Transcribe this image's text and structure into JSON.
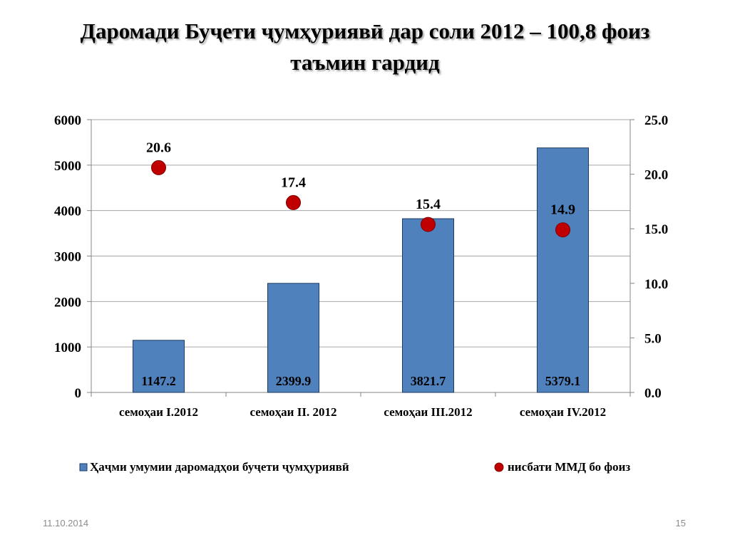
{
  "slide": {
    "title_line1": "Даромади Буҷети ҷумҳуриявӣ дар соли 2012 – 100,8 фоиз",
    "title_line2": "таъмин гардид",
    "date": "11.10.2014",
    "page_number": "15"
  },
  "chart_data": {
    "type": "bar",
    "categories": [
      "семоҳаи I.2012",
      "семоҳаи II. 2012",
      "семоҳаи III.2012",
      "семоҳаи IV.2012"
    ],
    "series": [
      {
        "name": "Ҳаҷми умумии даромадҳои буҷети ҷумҳуриявӣ",
        "type": "bar",
        "axis": "left",
        "color": "#4f81bd",
        "values": [
          1147.2,
          2399.9,
          3821.7,
          5379.1
        ],
        "labels": [
          "1147.2",
          "2399.9",
          "3821.7",
          "5379.1"
        ]
      },
      {
        "name": "нисбати ММД бо фоиз",
        "type": "scatter",
        "axis": "right",
        "color": "#c00000",
        "values": [
          20.6,
          17.4,
          15.4,
          14.9
        ],
        "labels": [
          "20.6",
          "17.4",
          "15.4",
          "14.9"
        ]
      }
    ],
    "y_left": {
      "min": 0,
      "max": 6000,
      "ticks": [
        0,
        1000,
        2000,
        3000,
        4000,
        5000,
        6000
      ],
      "tick_labels": [
        "0",
        "1000",
        "2000",
        "3000",
        "4000",
        "5000",
        "6000"
      ]
    },
    "y_right": {
      "min": 0,
      "max": 25,
      "ticks": [
        0,
        5,
        10,
        15,
        20,
        25
      ],
      "tick_labels": [
        "0.0",
        "5.0",
        "10.0",
        "15.0",
        "20.0",
        "25.0"
      ]
    },
    "grid": true,
    "legend": "bottom"
  }
}
